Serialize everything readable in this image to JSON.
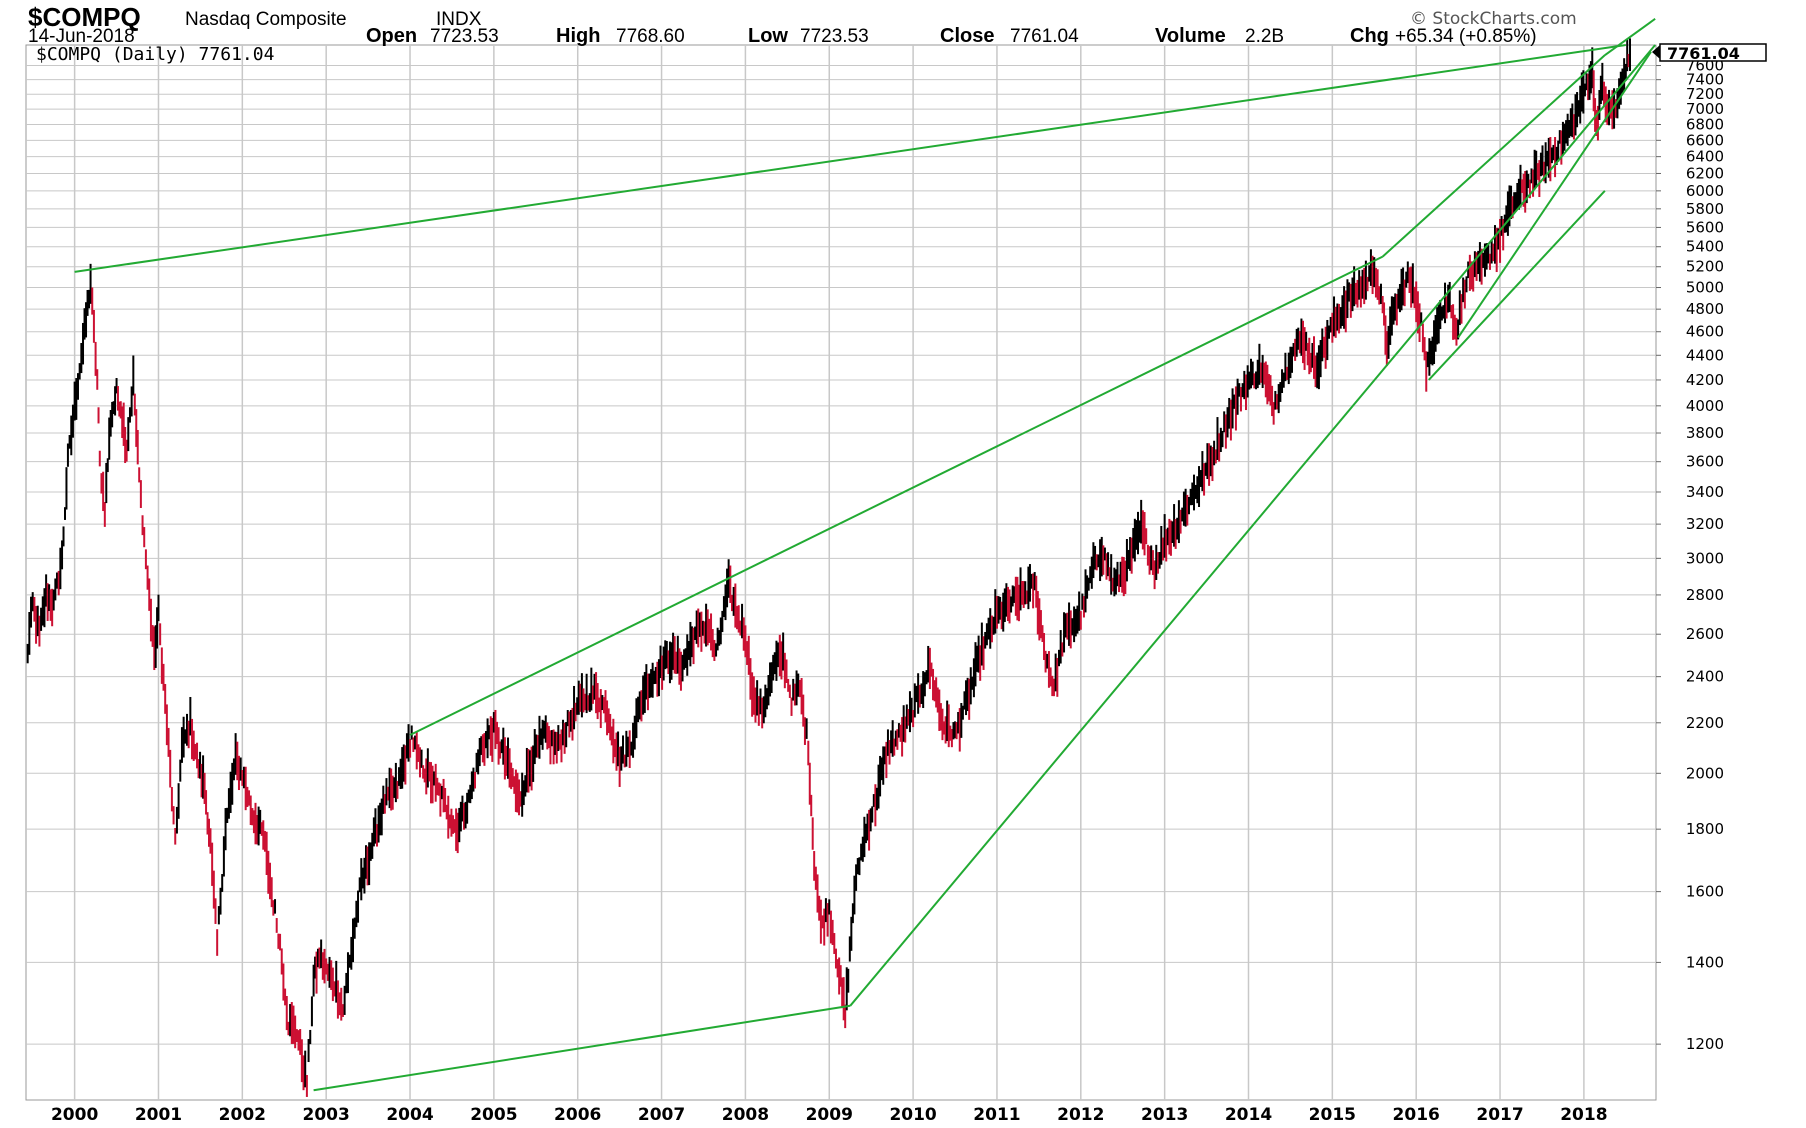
{
  "header": {
    "symbol": "$COMPQ",
    "name": "Nasdaq Composite",
    "exchange": "INDX",
    "date": "14-Jun-2018",
    "open_label": "Open",
    "open_value": "7723.53",
    "high_label": "High",
    "high_value": "7768.60",
    "low_label": "Low",
    "low_value": "7723.53",
    "close_label": "Close",
    "close_value": "7761.04",
    "volume_label": "Volume",
    "volume_value": "2.2B",
    "chg_label": "Chg",
    "chg_value": "+65.34 (+0.85%)"
  },
  "watermark": "© StockCharts.com",
  "legend": "$COMPQ (Daily) 7761.04",
  "last_price_label": "7761.04",
  "colors": {
    "up": "#000000",
    "down": "#cc1133",
    "trendline": "#22aa33",
    "grid": "#c8c8c8"
  },
  "chart_data": {
    "type": "line",
    "y_scale": "log",
    "ylim": [
      1080,
      7900
    ],
    "xlim": [
      1999.42,
      2018.86
    ],
    "y_ticks": [
      1200,
      1400,
      1600,
      1800,
      2000,
      2200,
      2400,
      2600,
      2800,
      3000,
      3200,
      3400,
      3600,
      3800,
      4000,
      4200,
      4400,
      4600,
      4800,
      5000,
      5200,
      5400,
      5600,
      5800,
      6000,
      6200,
      6400,
      6600,
      6800,
      7000,
      7200,
      7400,
      7600
    ],
    "x_ticks": [
      "2000",
      "2001",
      "2002",
      "2003",
      "2004",
      "2005",
      "2006",
      "2007",
      "2008",
      "2009",
      "2010",
      "2011",
      "2012",
      "2013",
      "2014",
      "2015",
      "2016",
      "2017",
      "2018"
    ],
    "series": [
      {
        "values": [
          [
            1999.42,
            2450
          ],
          [
            1999.5,
            2750
          ],
          [
            1999.58,
            2600
          ],
          [
            1999.66,
            2800
          ],
          [
            1999.75,
            2750
          ],
          [
            1999.85,
            3000
          ],
          [
            1999.92,
            3600
          ],
          [
            2000.0,
            4000
          ],
          [
            2000.1,
            4500
          ],
          [
            2000.19,
            5048
          ],
          [
            2000.27,
            4200
          ],
          [
            2000.3,
            3600
          ],
          [
            2000.36,
            3300
          ],
          [
            2000.43,
            3900
          ],
          [
            2000.5,
            4100
          ],
          [
            2000.55,
            4000
          ],
          [
            2000.62,
            3700
          ],
          [
            2000.7,
            4200
          ],
          [
            2000.77,
            3500
          ],
          [
            2000.85,
            3000
          ],
          [
            2000.95,
            2500
          ],
          [
            2001.0,
            2700
          ],
          [
            2001.1,
            2200
          ],
          [
            2001.2,
            1750
          ],
          [
            2001.28,
            2100
          ],
          [
            2001.38,
            2200
          ],
          [
            2001.46,
            2050
          ],
          [
            2001.55,
            1950
          ],
          [
            2001.62,
            1750
          ],
          [
            2001.7,
            1450
          ],
          [
            2001.8,
            1800
          ],
          [
            2001.92,
            2050
          ],
          [
            2002.0,
            2000
          ],
          [
            2002.12,
            1850
          ],
          [
            2002.25,
            1780
          ],
          [
            2002.35,
            1600
          ],
          [
            2002.45,
            1450
          ],
          [
            2002.55,
            1250
          ],
          [
            2002.65,
            1230
          ],
          [
            2002.77,
            1114
          ],
          [
            2002.85,
            1350
          ],
          [
            2002.92,
            1420
          ],
          [
            2003.0,
            1380
          ],
          [
            2003.12,
            1340
          ],
          [
            2003.2,
            1280
          ],
          [
            2003.28,
            1400
          ],
          [
            2003.4,
            1600
          ],
          [
            2003.55,
            1750
          ],
          [
            2003.7,
            1900
          ],
          [
            2003.85,
            1950
          ],
          [
            2004.02,
            2150
          ],
          [
            2004.1,
            2050
          ],
          [
            2004.25,
            1980
          ],
          [
            2004.4,
            1900
          ],
          [
            2004.55,
            1800
          ],
          [
            2004.7,
            1900
          ],
          [
            2004.85,
            2100
          ],
          [
            2005.0,
            2170
          ],
          [
            2005.15,
            2050
          ],
          [
            2005.3,
            1900
          ],
          [
            2005.45,
            2050
          ],
          [
            2005.6,
            2150
          ],
          [
            2005.75,
            2100
          ],
          [
            2005.9,
            2200
          ],
          [
            2006.05,
            2300
          ],
          [
            2006.2,
            2330
          ],
          [
            2006.35,
            2250
          ],
          [
            2006.5,
            2050
          ],
          [
            2006.62,
            2100
          ],
          [
            2006.8,
            2350
          ],
          [
            2006.95,
            2420
          ],
          [
            2007.1,
            2500
          ],
          [
            2007.25,
            2450
          ],
          [
            2007.4,
            2600
          ],
          [
            2007.55,
            2650
          ],
          [
            2007.65,
            2500
          ],
          [
            2007.8,
            2850
          ],
          [
            2007.9,
            2700
          ],
          [
            2008.0,
            2600
          ],
          [
            2008.1,
            2300
          ],
          [
            2008.2,
            2250
          ],
          [
            2008.35,
            2450
          ],
          [
            2008.45,
            2500
          ],
          [
            2008.55,
            2300
          ],
          [
            2008.65,
            2350
          ],
          [
            2008.75,
            2100
          ],
          [
            2008.82,
            1700
          ],
          [
            2008.9,
            1500
          ],
          [
            2009.0,
            1550
          ],
          [
            2009.1,
            1400
          ],
          [
            2009.19,
            1268
          ],
          [
            2009.3,
            1600
          ],
          [
            2009.4,
            1750
          ],
          [
            2009.55,
            1900
          ],
          [
            2009.7,
            2100
          ],
          [
            2009.85,
            2150
          ],
          [
            2010.0,
            2250
          ],
          [
            2010.2,
            2450
          ],
          [
            2010.35,
            2200
          ],
          [
            2010.5,
            2150
          ],
          [
            2010.65,
            2300
          ],
          [
            2010.8,
            2500
          ],
          [
            2011.0,
            2700
          ],
          [
            2011.15,
            2750
          ],
          [
            2011.3,
            2800
          ],
          [
            2011.45,
            2850
          ],
          [
            2011.58,
            2500
          ],
          [
            2011.68,
            2350
          ],
          [
            2011.8,
            2600
          ],
          [
            2012.0,
            2700
          ],
          [
            2012.15,
            2950
          ],
          [
            2012.25,
            3050
          ],
          [
            2012.4,
            2850
          ],
          [
            2012.55,
            2950
          ],
          [
            2012.72,
            3180
          ],
          [
            2012.88,
            2950
          ],
          [
            2013.0,
            3100
          ],
          [
            2013.15,
            3200
          ],
          [
            2013.35,
            3400
          ],
          [
            2013.55,
            3600
          ],
          [
            2013.75,
            3900
          ],
          [
            2013.95,
            4150
          ],
          [
            2014.15,
            4300
          ],
          [
            2014.3,
            4000
          ],
          [
            2014.5,
            4400
          ],
          [
            2014.65,
            4550
          ],
          [
            2014.8,
            4300
          ],
          [
            2015.0,
            4650
          ],
          [
            2015.2,
            4900
          ],
          [
            2015.4,
            5050
          ],
          [
            2015.5,
            5200
          ],
          [
            2015.6,
            4800
          ],
          [
            2015.65,
            4500
          ],
          [
            2015.75,
            4800
          ],
          [
            2015.9,
            5100
          ],
          [
            2016.0,
            4900
          ],
          [
            2016.08,
            4600
          ],
          [
            2016.12,
            4250
          ],
          [
            2016.25,
            4700
          ],
          [
            2016.4,
            4900
          ],
          [
            2016.48,
            4600
          ],
          [
            2016.6,
            5100
          ],
          [
            2016.8,
            5200
          ],
          [
            2016.9,
            5350
          ],
          [
            2017.0,
            5500
          ],
          [
            2017.15,
            5850
          ],
          [
            2017.3,
            6050
          ],
          [
            2017.45,
            6200
          ],
          [
            2017.6,
            6400
          ],
          [
            2017.75,
            6600
          ],
          [
            2017.9,
            6900
          ],
          [
            2018.05,
            7400
          ],
          [
            2018.1,
            7500
          ],
          [
            2018.15,
            6800
          ],
          [
            2018.22,
            7300
          ],
          [
            2018.3,
            6950
          ],
          [
            2018.4,
            7050
          ],
          [
            2018.5,
            7600
          ],
          [
            2018.55,
            7761
          ]
        ]
      }
    ],
    "trendlines": [
      [
        [
          2000.0,
          5150
        ],
        [
          2018.5,
          7900
        ]
      ],
      [
        [
          2004.0,
          2150
        ],
        [
          2015.6,
          5300
        ]
      ],
      [
        [
          2002.85,
          1100
        ],
        [
          2009.25,
          1290
        ]
      ],
      [
        [
          2009.25,
          1290
        ],
        [
          2018.85,
          7900
        ]
      ],
      [
        [
          2016.15,
          4200
        ],
        [
          2018.25,
          6000
        ]
      ],
      [
        [
          2016.5,
          4550
        ],
        [
          2018.8,
          7800
        ]
      ],
      [
        [
          2015.6,
          5300
        ],
        [
          2018.25,
          7750
        ]
      ],
      [
        [
          2018.25,
          7750
        ],
        [
          2018.85,
          8300
        ]
      ]
    ]
  }
}
